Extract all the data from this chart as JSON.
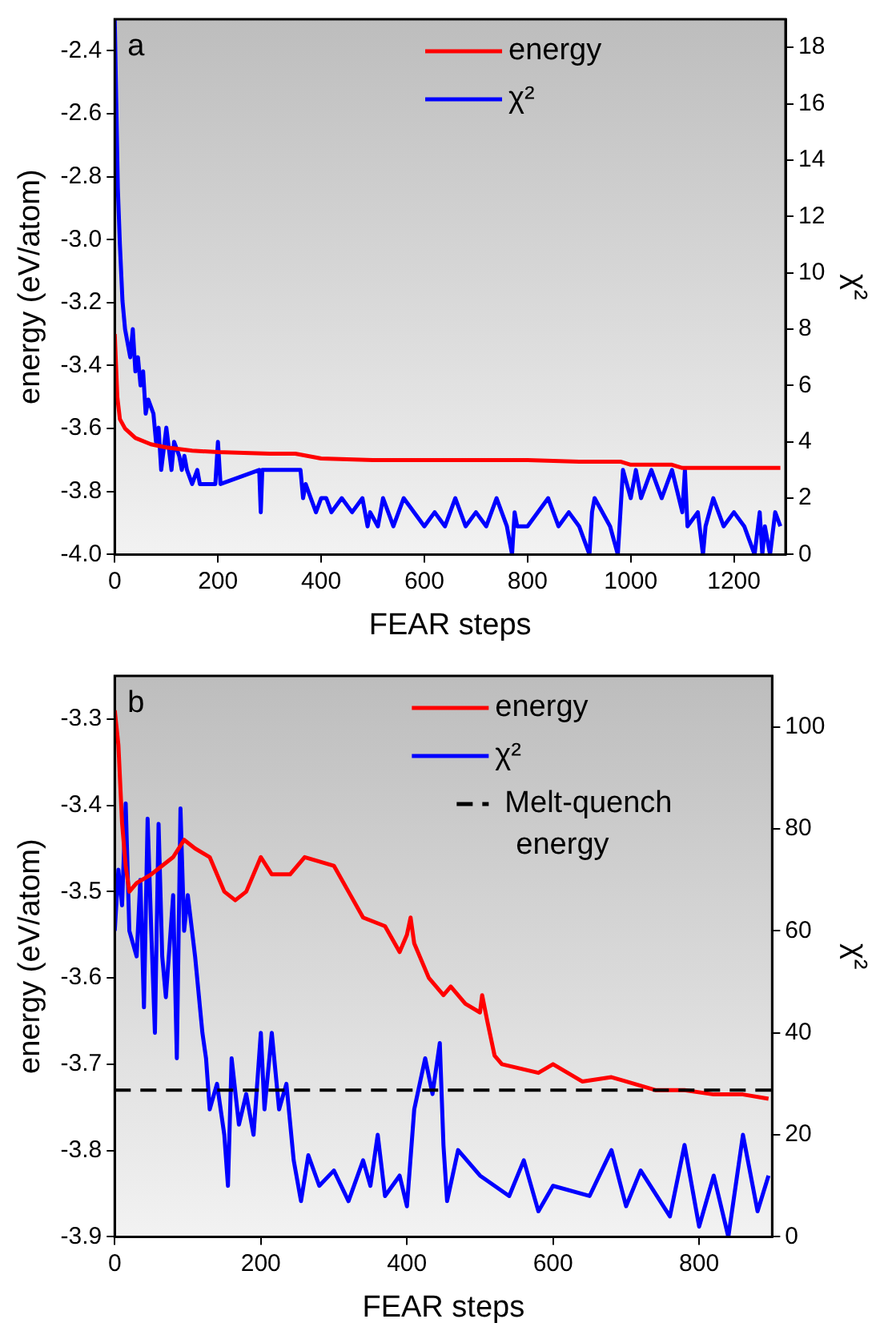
{
  "chart_data": [
    {
      "type": "line",
      "title": "a",
      "xlabel": "FEAR steps",
      "ylabel": "energy (eV/atom)",
      "y2label": "χ²",
      "xlim": [
        0,
        1300
      ],
      "xticks": [
        0,
        200,
        400,
        600,
        800,
        1000,
        1200
      ],
      "ylim": [
        -4.0,
        -2.3
      ],
      "yticks": [
        {
          "value": -4,
          "label": "-4.0"
        },
        -3.8,
        -3.6,
        -3.4,
        -3.2,
        {
          "value": -3,
          "label": "-3.0"
        },
        -2.8,
        -2.6,
        -2.4
      ],
      "y2lim": [
        0,
        19
      ],
      "y2ticks": [
        0,
        2,
        4,
        6,
        8,
        10,
        12,
        14,
        16,
        18
      ],
      "legend": "top right",
      "grid": false,
      "marker": "none",
      "line_style": "solid",
      "series": [
        {
          "name": "energy",
          "color": "#ff0000",
          "x": [
            0,
            5,
            10,
            20,
            40,
            70,
            100,
            150,
            200,
            300,
            350,
            400,
            500,
            600,
            800,
            900,
            980,
            1000,
            1080,
            1100,
            1200,
            1290
          ],
          "values": [
            -3.3,
            -3.5,
            -3.57,
            -3.6,
            -3.63,
            -3.65,
            -3.66,
            -3.67,
            -3.675,
            -3.68,
            -3.68,
            -3.695,
            -3.7,
            -3.7,
            -3.7,
            -3.705,
            -3.705,
            -3.715,
            -3.715,
            -3.725,
            -3.725,
            -3.725
          ]
        },
        {
          "name": "χ²",
          "color": "#0000ff",
          "axis": "y2",
          "x": [
            0,
            3,
            6,
            10,
            15,
            20,
            25,
            30,
            35,
            40,
            45,
            50,
            55,
            60,
            65,
            75,
            80,
            85,
            90,
            100,
            110,
            115,
            125,
            130,
            135,
            140,
            150,
            160,
            165,
            195,
            200,
            205,
            280,
            283,
            286,
            360,
            365,
            370,
            380,
            390,
            400,
            410,
            420,
            440,
            460,
            480,
            490,
            495,
            510,
            520,
            540,
            560,
            600,
            620,
            640,
            660,
            680,
            700,
            720,
            740,
            760,
            770,
            775,
            780,
            800,
            840,
            860,
            880,
            900,
            920,
            925,
            930,
            960,
            975,
            980,
            985,
            1000,
            1010,
            1020,
            1040,
            1060,
            1080,
            1100,
            1105,
            1110,
            1130,
            1140,
            1145,
            1160,
            1180,
            1200,
            1220,
            1240,
            1250,
            1255,
            1260,
            1270,
            1280,
            1290
          ],
          "values": [
            19,
            16,
            13,
            11,
            9,
            8,
            7.5,
            7,
            8,
            6.5,
            7,
            6,
            6.5,
            5,
            5.5,
            5,
            4,
            4.5,
            3,
            4.5,
            3,
            4,
            3.5,
            3,
            3.5,
            3,
            2.5,
            3,
            2.5,
            2.5,
            4,
            2.5,
            3,
            1.5,
            3,
            3,
            2,
            2.5,
            2,
            1.5,
            2,
            2,
            1.5,
            2,
            1.5,
            2,
            1,
            1.5,
            1,
            2,
            1,
            2,
            1,
            1.5,
            1,
            2,
            1,
            1.5,
            1,
            2,
            1,
            0,
            1.5,
            1,
            1,
            2,
            1,
            1.5,
            1,
            0,
            1.5,
            2,
            1,
            0,
            1.5,
            3,
            2,
            3,
            2,
            3,
            2,
            3,
            1.5,
            3,
            1,
            1.5,
            0,
            1,
            2,
            1,
            1.5,
            1,
            0,
            1.5,
            0,
            1,
            0,
            1.5,
            1
          ]
        }
      ]
    },
    {
      "type": "line",
      "title": "b",
      "xlabel": "FEAR steps",
      "ylabel": "energy (eV/atom)",
      "y2label": "χ²",
      "xlim": [
        0,
        900
      ],
      "xticks": [
        0,
        200,
        400,
        600,
        800
      ],
      "ylim": [
        -3.9,
        -3.25
      ],
      "yticks": [
        -3.9,
        -3.8,
        -3.7,
        -3.6,
        -3.5,
        -3.4,
        -3.3
      ],
      "y2lim": [
        0,
        110
      ],
      "y2ticks": [
        0,
        20,
        40,
        60,
        80,
        100
      ],
      "legend": "top right",
      "grid": false,
      "marker": "none",
      "line_style": "solid",
      "ref_lines": [
        {
          "axis": "y",
          "value": -3.73,
          "label": "Melt-quench energy",
          "color": "#000000",
          "line_style": "dashed"
        }
      ],
      "series": [
        {
          "name": "energy",
          "color": "#ff0000",
          "x": [
            0,
            5,
            10,
            15,
            20,
            30,
            50,
            80,
            95,
            110,
            130,
            150,
            165,
            180,
            200,
            215,
            240,
            260,
            300,
            320,
            340,
            370,
            390,
            400,
            405,
            410,
            430,
            450,
            460,
            480,
            500,
            503,
            510,
            520,
            530,
            580,
            600,
            640,
            680,
            700,
            740,
            780,
            820,
            860,
            895
          ],
          "values": [
            -3.29,
            -3.33,
            -3.42,
            -3.47,
            -3.5,
            -3.49,
            -3.48,
            -3.46,
            -3.44,
            -3.45,
            -3.46,
            -3.5,
            -3.51,
            -3.5,
            -3.46,
            -3.48,
            -3.48,
            -3.46,
            -3.47,
            -3.5,
            -3.53,
            -3.54,
            -3.57,
            -3.55,
            -3.53,
            -3.56,
            -3.6,
            -3.62,
            -3.61,
            -3.63,
            -3.64,
            -3.62,
            -3.65,
            -3.69,
            -3.7,
            -3.71,
            -3.7,
            -3.72,
            -3.715,
            -3.72,
            -3.73,
            -3.73,
            -3.735,
            -3.735,
            -3.74
          ]
        },
        {
          "name": "χ²",
          "color": "#0000ff",
          "axis": "y2",
          "x": [
            0,
            5,
            10,
            15,
            20,
            30,
            35,
            40,
            45,
            50,
            55,
            60,
            65,
            70,
            80,
            85,
            90,
            95,
            100,
            110,
            120,
            125,
            130,
            140,
            150,
            155,
            160,
            170,
            180,
            190,
            200,
            205,
            215,
            225,
            235,
            245,
            255,
            265,
            280,
            300,
            320,
            340,
            350,
            360,
            370,
            390,
            400,
            410,
            425,
            435,
            445,
            450,
            455,
            470,
            500,
            540,
            560,
            580,
            600,
            650,
            680,
            700,
            720,
            760,
            780,
            800,
            820,
            840,
            860,
            880,
            895
          ],
          "values": [
            60,
            72,
            65,
            85,
            60,
            55,
            70,
            45,
            82,
            60,
            40,
            81,
            55,
            47,
            67,
            35,
            84,
            60,
            67,
            55,
            40,
            35,
            25,
            30,
            20,
            10,
            35,
            22,
            28,
            20,
            40,
            25,
            40,
            25,
            30,
            15,
            7,
            16,
            10,
            13,
            7,
            15,
            10,
            20,
            8,
            12,
            6,
            25,
            35,
            28,
            38,
            18,
            7,
            17,
            12,
            8,
            15,
            5,
            10,
            8,
            17,
            6,
            13,
            4,
            18,
            2,
            12,
            0,
            20,
            5,
            12
          ]
        }
      ]
    }
  ]
}
